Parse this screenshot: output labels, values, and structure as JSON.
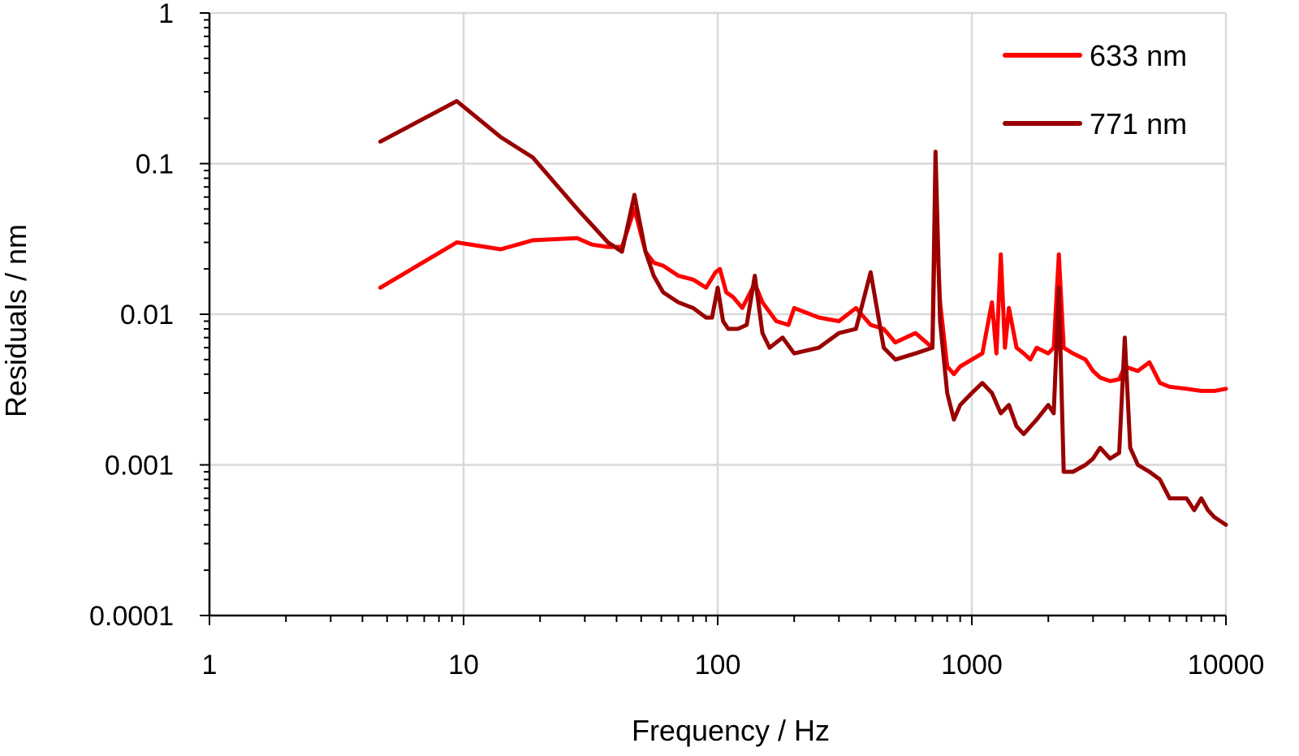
{
  "chart_data": {
    "type": "line",
    "xlabel": "Frequency / Hz",
    "ylabel": "Residuals / nm",
    "x_scale": "log",
    "y_scale": "log",
    "xlim": [
      1,
      10000
    ],
    "ylim": [
      0.0001,
      1
    ],
    "x_ticks": [
      {
        "value": 1,
        "label": "1"
      },
      {
        "value": 10,
        "label": "10"
      },
      {
        "value": 100,
        "label": "100"
      },
      {
        "value": 1000,
        "label": "1000"
      },
      {
        "value": 10000,
        "label": "10000"
      }
    ],
    "y_ticks": [
      {
        "value": 0.0001,
        "label": "0.0001"
      },
      {
        "value": 0.001,
        "label": "0.001"
      },
      {
        "value": 0.01,
        "label": "0.01"
      },
      {
        "value": 0.1,
        "label": "0.1"
      },
      {
        "value": 1,
        "label": "1"
      }
    ],
    "grid": true,
    "legend_position": "top-right",
    "series": [
      {
        "name": "633 nm",
        "color": "#ff0000",
        "x": [
          4.7,
          9.4,
          14,
          18.7,
          28,
          32,
          37,
          42,
          47,
          52,
          56,
          61,
          70,
          80,
          90,
          98,
          102,
          108,
          115,
          125,
          140,
          150,
          170,
          190,
          200,
          250,
          300,
          350,
          400,
          450,
          500,
          600,
          700,
          720,
          750,
          800,
          850,
          900,
          1000,
          1100,
          1200,
          1250,
          1300,
          1350,
          1400,
          1500,
          1600,
          1700,
          1800,
          2000,
          2100,
          2200,
          2300,
          2500,
          2800,
          3000,
          3200,
          3500,
          3800,
          4000,
          4500,
          5000,
          5500,
          6000,
          7000,
          8000,
          9000,
          10000
        ],
        "y": [
          0.015,
          0.03,
          0.027,
          0.031,
          0.032,
          0.029,
          0.028,
          0.028,
          0.05,
          0.026,
          0.022,
          0.021,
          0.018,
          0.017,
          0.015,
          0.019,
          0.02,
          0.014,
          0.013,
          0.011,
          0.016,
          0.012,
          0.009,
          0.0085,
          0.011,
          0.0095,
          0.009,
          0.011,
          0.0085,
          0.008,
          0.0065,
          0.0075,
          0.006,
          0.06,
          0.012,
          0.0045,
          0.004,
          0.0045,
          0.005,
          0.0055,
          0.012,
          0.0055,
          0.025,
          0.006,
          0.011,
          0.006,
          0.0055,
          0.005,
          0.006,
          0.0055,
          0.006,
          0.025,
          0.006,
          0.0055,
          0.005,
          0.0042,
          0.0038,
          0.0036,
          0.0037,
          0.0045,
          0.0042,
          0.0048,
          0.0035,
          0.0033,
          0.0032,
          0.0031,
          0.0031,
          0.0032
        ]
      },
      {
        "name": "771 nm",
        "color": "#990000",
        "x": [
          4.7,
          9.4,
          14,
          18.7,
          28,
          37,
          42,
          47,
          52,
          56,
          61,
          70,
          80,
          90,
          95,
          100,
          105,
          110,
          120,
          130,
          140,
          150,
          160,
          180,
          200,
          250,
          300,
          350,
          400,
          450,
          500,
          600,
          700,
          720,
          750,
          800,
          850,
          900,
          1000,
          1100,
          1200,
          1300,
          1400,
          1500,
          1600,
          1800,
          2000,
          2100,
          2200,
          2300,
          2500,
          2800,
          3000,
          3200,
          3500,
          3800,
          4000,
          4200,
          4500,
          5000,
          5500,
          6000,
          7000,
          7500,
          8000,
          8500,
          9000,
          10000
        ],
        "y": [
          0.14,
          0.26,
          0.15,
          0.11,
          0.05,
          0.03,
          0.026,
          0.062,
          0.026,
          0.018,
          0.014,
          0.012,
          0.011,
          0.0095,
          0.0095,
          0.015,
          0.009,
          0.008,
          0.008,
          0.0085,
          0.018,
          0.0075,
          0.006,
          0.007,
          0.0055,
          0.006,
          0.0075,
          0.008,
          0.019,
          0.006,
          0.005,
          0.0055,
          0.006,
          0.12,
          0.009,
          0.003,
          0.002,
          0.0025,
          0.003,
          0.0035,
          0.003,
          0.0022,
          0.0025,
          0.0018,
          0.0016,
          0.002,
          0.0025,
          0.0022,
          0.015,
          0.0009,
          0.0009,
          0.001,
          0.0011,
          0.0013,
          0.0011,
          0.0012,
          0.007,
          0.0013,
          0.001,
          0.0009,
          0.0008,
          0.0006,
          0.0006,
          0.0005,
          0.0006,
          0.0005,
          0.00045,
          0.0004
        ]
      }
    ]
  }
}
